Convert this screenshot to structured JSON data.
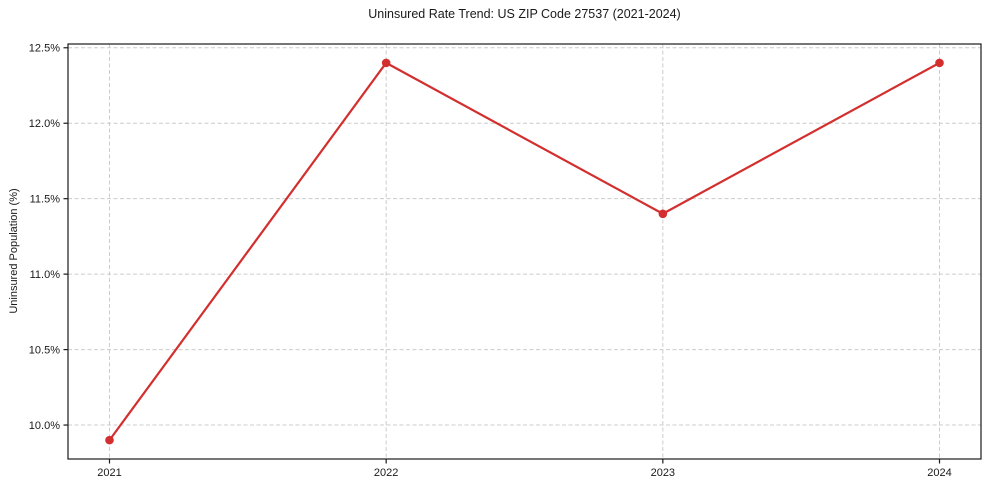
{
  "chart_data": {
    "type": "line",
    "title": "Uninsured Rate Trend: US ZIP Code 27537 (2021-2024)",
    "xlabel": "",
    "ylabel": "Uninsured Population (%)",
    "categories": [
      2021,
      2022,
      2023,
      2024
    ],
    "values": [
      9.9,
      12.4,
      11.4,
      12.4
    ],
    "xtick_labels": [
      "2021",
      "2022",
      "2023",
      "2024"
    ],
    "yticks": [
      10.0,
      10.5,
      11.0,
      11.5,
      12.0,
      12.5
    ],
    "ytick_labels": [
      "10.0%",
      "10.5%",
      "11.0%",
      "11.5%",
      "12.0%",
      "12.5%"
    ],
    "ylim": [
      9.775,
      12.525
    ],
    "xlim": [
      2020.85,
      2024.15
    ],
    "grid": true,
    "grid_style": "dashed",
    "legend": false,
    "line_color": "#d32f2f",
    "marker": "circle",
    "marker_radius": 4.3,
    "line_width": 2.2,
    "grid_color": "#cccccc",
    "axis_color": "#1a1a1a",
    "background": "#ffffff"
  }
}
